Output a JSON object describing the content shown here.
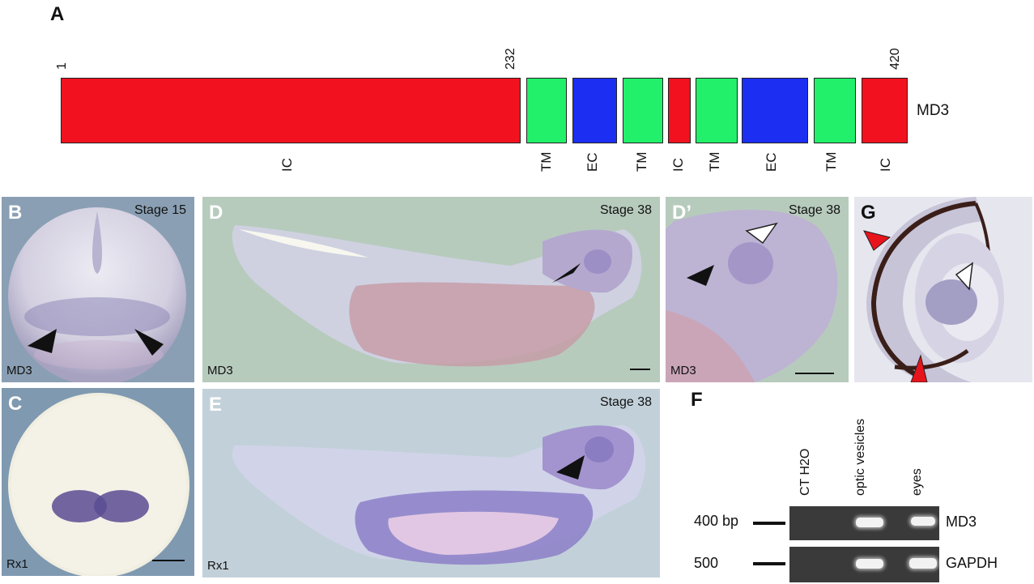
{
  "panels": {
    "A": "A",
    "B": "B",
    "C": "C",
    "D": "D",
    "Dp": "D’",
    "E": "E",
    "F": "F",
    "G": "G"
  },
  "domain_map": {
    "positions": {
      "start": "1",
      "mid": "232",
      "end": "420"
    },
    "protein": "MD3",
    "segments": [
      {
        "type": "IC",
        "color": "#f2121f"
      },
      {
        "type": "TM",
        "color": "#22f06a"
      },
      {
        "type": "EC",
        "color": "#1c2ef2"
      },
      {
        "type": "TM",
        "color": "#22f06a"
      },
      {
        "type": "IC",
        "color": "#f2121f"
      },
      {
        "type": "TM",
        "color": "#22f06a"
      },
      {
        "type": "EC",
        "color": "#1c2ef2"
      },
      {
        "type": "TM",
        "color": "#22f06a"
      },
      {
        "type": "IC",
        "color": "#f2121f"
      }
    ]
  },
  "images": {
    "B": {
      "stage": "Stage 15",
      "gene": "MD3"
    },
    "C": {
      "gene": "Rx1"
    },
    "D": {
      "stage": "Stage 38",
      "gene": "MD3"
    },
    "Dp": {
      "stage": "Stage 38",
      "gene": "MD3"
    },
    "E": {
      "stage": "Stage 38",
      "gene": "Rx1"
    }
  },
  "gel": {
    "lanes": [
      "CT H2O",
      "optic vesicles",
      "eyes"
    ],
    "rows": [
      {
        "marker": "400 bp",
        "gene": "MD3"
      },
      {
        "marker": "500",
        "gene": "GAPDH"
      }
    ]
  }
}
